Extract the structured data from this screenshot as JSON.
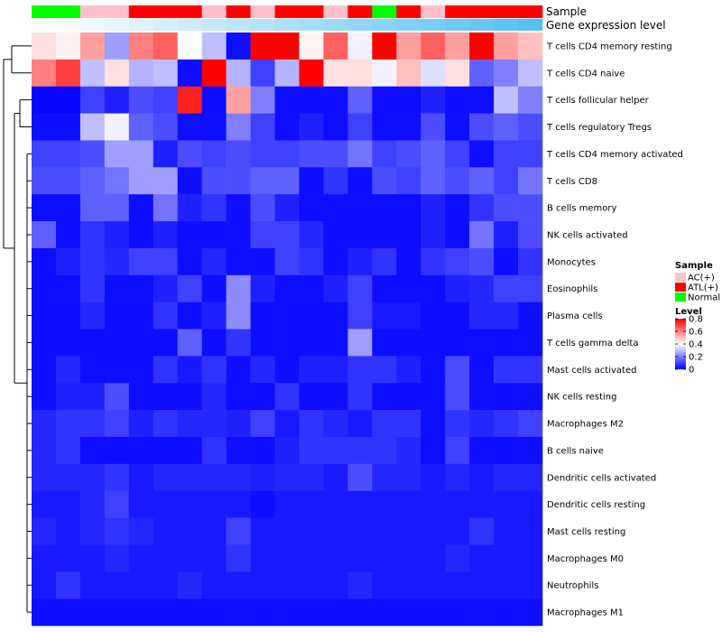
{
  "chart_data": {
    "type": "heatmap",
    "title": "",
    "annotation_rows": [
      {
        "name": "Sample",
        "label": "Sample"
      },
      {
        "name": "Gene expression level",
        "label": "Gene expression level"
      }
    ],
    "sample_groups": [
      "Normal",
      "Normal",
      "AC(+)",
      "AC(+)",
      "ATL(+)",
      "ATL(+)",
      "ATL(+)",
      "AC(+)",
      "ATL(+)",
      "AC(+)",
      "ATL(+)",
      "ATL(+)",
      "AC(+)",
      "ATL(+)",
      "Normal",
      "ATL(+)",
      "AC(+)",
      "ATL(+)",
      "ATL(+)",
      "ATL(+)",
      "ATL(+)"
    ],
    "expression_levels": [
      0.0,
      0.05,
      0.1,
      0.15,
      0.2,
      0.25,
      0.3,
      0.35,
      0.4,
      0.45,
      0.5,
      0.55,
      0.6,
      0.65,
      0.7,
      0.75,
      0.8,
      0.85,
      0.9,
      0.95,
      1.0
    ],
    "rows": [
      "T cells CD4 memory resting",
      "T cells CD4 naive",
      "T cells follicular helper",
      "T cells regulatory  Tregs",
      "T cells CD4 memory activated",
      "T cells CD8",
      "B cells memory",
      "NK cells activated",
      "Monocytes",
      "Eosinophils",
      "Plasma cells",
      "T cells gamma delta",
      "Mast cells activated",
      "NK cells resting",
      "Macrophages M2",
      "B cells naive",
      "Dendritic cells activated",
      "Dendritic cells resting",
      "Mast cells resting",
      "Macrophages M0",
      "Neutrophils",
      "Macrophages M1"
    ],
    "values": [
      [
        0.45,
        0.42,
        0.55,
        0.25,
        0.6,
        0.65,
        0.4,
        0.3,
        0.02,
        0.8,
        0.8,
        0.42,
        0.65,
        0.38,
        0.8,
        0.55,
        0.65,
        0.55,
        0.8,
        0.55,
        0.5
      ],
      [
        0.6,
        0.7,
        0.3,
        0.45,
        0.28,
        0.3,
        0.02,
        0.8,
        0.28,
        0.1,
        0.28,
        0.8,
        0.45,
        0.45,
        0.38,
        0.5,
        0.35,
        0.45,
        0.15,
        0.2,
        0.3
      ],
      [
        0.01,
        0.01,
        0.1,
        0.05,
        0.12,
        0.1,
        0.75,
        0.02,
        0.55,
        0.2,
        0.02,
        0.02,
        0.02,
        0.15,
        0.02,
        0.02,
        0.05,
        0.02,
        0.02,
        0.3,
        0.2
      ],
      [
        0.02,
        0.02,
        0.3,
        0.38,
        0.15,
        0.12,
        0.02,
        0.02,
        0.2,
        0.1,
        0.02,
        0.05,
        0.02,
        0.1,
        0.02,
        0.02,
        0.12,
        0.02,
        0.12,
        0.15,
        0.12
      ],
      [
        0.1,
        0.1,
        0.12,
        0.25,
        0.25,
        0.05,
        0.12,
        0.1,
        0.12,
        0.1,
        0.1,
        0.12,
        0.12,
        0.18,
        0.1,
        0.12,
        0.15,
        0.1,
        0.02,
        0.1,
        0.1
      ],
      [
        0.12,
        0.12,
        0.15,
        0.18,
        0.25,
        0.25,
        0.02,
        0.12,
        0.12,
        0.15,
        0.15,
        0.02,
        0.08,
        0.02,
        0.12,
        0.1,
        0.15,
        0.12,
        0.15,
        0.1,
        0.18
      ],
      [
        0.02,
        0.02,
        0.15,
        0.15,
        0.02,
        0.18,
        0.05,
        0.08,
        0.02,
        0.12,
        0.05,
        0.02,
        0.02,
        0.02,
        0.02,
        0.02,
        0.05,
        0.02,
        0.08,
        0.12,
        0.12
      ],
      [
        0.15,
        0.02,
        0.08,
        0.05,
        0.02,
        0.05,
        0.02,
        0.02,
        0.02,
        0.1,
        0.1,
        0.06,
        0.02,
        0.02,
        0.02,
        0.02,
        0.05,
        0.02,
        0.18,
        0.05,
        0.12
      ],
      [
        0.02,
        0.05,
        0.08,
        0.06,
        0.1,
        0.1,
        0.02,
        0.06,
        0.02,
        0.02,
        0.1,
        0.08,
        0.02,
        0.05,
        0.08,
        0.02,
        0.08,
        0.1,
        0.12,
        0.02,
        0.08
      ],
      [
        0.02,
        0.02,
        0.08,
        0.02,
        0.02,
        0.05,
        0.1,
        0.02,
        0.22,
        0.05,
        0.02,
        0.02,
        0.05,
        0.1,
        0.02,
        0.02,
        0.02,
        0.05,
        0.06,
        0.1,
        0.1
      ],
      [
        0.02,
        0.02,
        0.06,
        0.02,
        0.02,
        0.08,
        0.02,
        0.05,
        0.22,
        0.02,
        0.02,
        0.02,
        0.02,
        0.1,
        0.04,
        0.04,
        0.02,
        0.02,
        0.06,
        0.06,
        0.02
      ],
      [
        0.02,
        0.02,
        0.02,
        0.02,
        0.02,
        0.02,
        0.15,
        0.02,
        0.08,
        0.02,
        0.02,
        0.02,
        0.02,
        0.25,
        0.02,
        0.02,
        0.02,
        0.02,
        0.02,
        0.02,
        0.02
      ],
      [
        0.02,
        0.06,
        0.02,
        0.02,
        0.02,
        0.08,
        0.04,
        0.08,
        0.02,
        0.06,
        0.02,
        0.05,
        0.05,
        0.08,
        0.08,
        0.05,
        0.02,
        0.12,
        0.02,
        0.08,
        0.08
      ],
      [
        0.02,
        0.05,
        0.05,
        0.12,
        0.02,
        0.02,
        0.02,
        0.06,
        0.02,
        0.02,
        0.08,
        0.02,
        0.02,
        0.08,
        0.02,
        0.02,
        0.02,
        0.12,
        0.02,
        0.02,
        0.02
      ],
      [
        0.06,
        0.08,
        0.08,
        0.1,
        0.05,
        0.08,
        0.06,
        0.06,
        0.05,
        0.1,
        0.04,
        0.08,
        0.06,
        0.04,
        0.08,
        0.08,
        0.02,
        0.08,
        0.06,
        0.08,
        0.1
      ],
      [
        0.06,
        0.08,
        0.02,
        0.02,
        0.02,
        0.02,
        0.02,
        0.08,
        0.02,
        0.02,
        0.05,
        0.08,
        0.08,
        0.08,
        0.08,
        0.06,
        0.02,
        0.1,
        0.02,
        0.02,
        0.02
      ],
      [
        0.06,
        0.06,
        0.06,
        0.08,
        0.04,
        0.06,
        0.06,
        0.06,
        0.06,
        0.05,
        0.06,
        0.06,
        0.04,
        0.12,
        0.06,
        0.06,
        0.04,
        0.06,
        0.04,
        0.06,
        0.06
      ],
      [
        0.04,
        0.04,
        0.06,
        0.1,
        0.04,
        0.04,
        0.04,
        0.04,
        0.04,
        0.02,
        0.04,
        0.04,
        0.04,
        0.04,
        0.04,
        0.04,
        0.04,
        0.04,
        0.04,
        0.04,
        0.04
      ],
      [
        0.06,
        0.04,
        0.06,
        0.08,
        0.06,
        0.04,
        0.04,
        0.04,
        0.1,
        0.04,
        0.04,
        0.04,
        0.04,
        0.04,
        0.04,
        0.04,
        0.04,
        0.04,
        0.08,
        0.04,
        0.04
      ],
      [
        0.04,
        0.04,
        0.04,
        0.06,
        0.04,
        0.04,
        0.04,
        0.04,
        0.08,
        0.04,
        0.04,
        0.04,
        0.04,
        0.04,
        0.04,
        0.04,
        0.04,
        0.06,
        0.04,
        0.04,
        0.04
      ],
      [
        0.04,
        0.08,
        0.04,
        0.04,
        0.04,
        0.04,
        0.06,
        0.04,
        0.04,
        0.04,
        0.04,
        0.04,
        0.04,
        0.06,
        0.04,
        0.04,
        0.04,
        0.04,
        0.04,
        0.04,
        0.04
      ],
      [
        0.02,
        0.02,
        0.02,
        0.02,
        0.02,
        0.02,
        0.02,
        0.02,
        0.02,
        0.02,
        0.02,
        0.02,
        0.02,
        0.02,
        0.02,
        0.02,
        0.02,
        0.02,
        0.02,
        0.02,
        0.02
      ]
    ],
    "color_scale": {
      "low": "#0000FF",
      "mid": "#FFFFFF",
      "high": "#FF0000",
      "min": 0,
      "max": 0.8
    },
    "legend": {
      "position": "right",
      "sample_title": "Sample",
      "sample_items": [
        {
          "label": "AC(+)",
          "color": "#FFC0CB"
        },
        {
          "label": "ATL(+)",
          "color": "#FF0000"
        },
        {
          "label": "Normal",
          "color": "#00FF00"
        }
      ],
      "level_title": "Level",
      "level_ticks": [
        "0.8",
        "0.6",
        "0.4",
        "0.2",
        "0"
      ],
      "level_tick_values": [
        0.8,
        0.6,
        0.4,
        0.2,
        0
      ]
    },
    "expression_bar_colors": {
      "low": "#FFFFFF",
      "high": "#55C1F0"
    },
    "dendrogram": "row clustering"
  }
}
